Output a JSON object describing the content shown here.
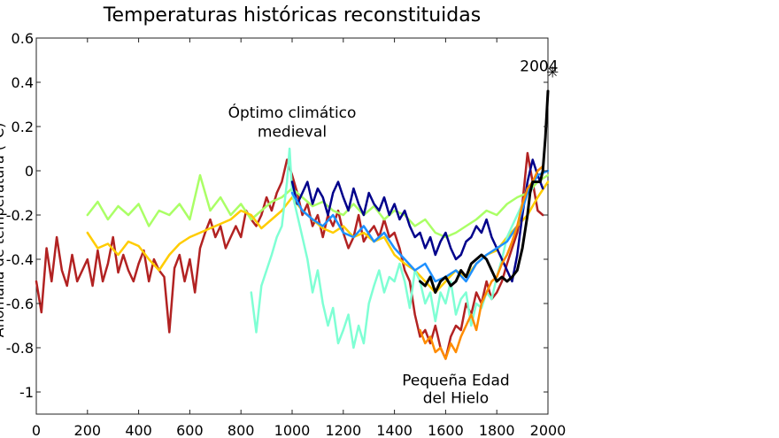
{
  "chart_data": {
    "type": "line",
    "title": "Temperaturas históricas reconstituidas",
    "xlabel": "",
    "ylabel": "Anomalía de temperatura (°C)",
    "xlim": [
      0,
      2000
    ],
    "ylim": [
      -1.1,
      0.6
    ],
    "xticks": [
      0,
      200,
      400,
      600,
      800,
      1000,
      1200,
      1400,
      1600,
      1800,
      2000
    ],
    "yticks": [
      0.6,
      0.4,
      0.2,
      0,
      -0.2,
      -0.4,
      -0.6,
      -0.8,
      -1
    ],
    "grid": false,
    "annotations": [
      {
        "text": "Óptimo climático",
        "x": 1000,
        "y": 0.24
      },
      {
        "text": "medieval",
        "x": 1000,
        "y": 0.155
      },
      {
        "text": "Pequeña Edad",
        "x": 1640,
        "y": -0.97
      },
      {
        "text": "del Hielo",
        "x": 1640,
        "y": -1.05
      },
      {
        "text": "2004",
        "x": 1965,
        "y": 0.45
      }
    ],
    "marker_2004": {
      "x": 2004,
      "y": 0.45,
      "symbol": "✳"
    },
    "series": [
      {
        "color": "#b22222",
        "x": [
          0,
          20,
          40,
          60,
          80,
          100,
          120,
          140,
          160,
          180,
          200,
          220,
          240,
          260,
          280,
          300,
          320,
          340,
          360,
          380,
          400,
          420,
          440,
          460,
          480,
          500,
          520,
          540,
          560,
          580,
          600,
          620,
          640,
          660,
          680,
          700,
          720,
          740,
          760,
          780,
          800,
          820,
          840,
          860,
          880,
          900,
          920,
          940,
          960,
          980,
          1000,
          1020,
          1040,
          1060,
          1080,
          1100,
          1120,
          1140,
          1160,
          1180,
          1200,
          1220,
          1240,
          1260,
          1280,
          1300,
          1320,
          1340,
          1360,
          1380,
          1400,
          1420,
          1440,
          1460,
          1480,
          1500,
          1520,
          1540,
          1560,
          1580,
          1600,
          1620,
          1640,
          1660,
          1680,
          1700,
          1720,
          1740,
          1760,
          1780,
          1800,
          1820,
          1840,
          1860,
          1880,
          1900,
          1920,
          1940,
          1960,
          1980
        ],
        "y": [
          -0.5,
          -0.64,
          -0.35,
          -0.5,
          -0.3,
          -0.45,
          -0.52,
          -0.38,
          -0.5,
          -0.45,
          -0.4,
          -0.52,
          -0.36,
          -0.5,
          -0.42,
          -0.3,
          -0.46,
          -0.38,
          -0.45,
          -0.5,
          -0.42,
          -0.36,
          -0.5,
          -0.4,
          -0.45,
          -0.48,
          -0.73,
          -0.44,
          -0.38,
          -0.5,
          -0.4,
          -0.55,
          -0.35,
          -0.28,
          -0.22,
          -0.3,
          -0.25,
          -0.35,
          -0.3,
          -0.25,
          -0.3,
          -0.18,
          -0.22,
          -0.25,
          -0.2,
          -0.12,
          -0.18,
          -0.1,
          -0.05,
          0.05,
          -0.02,
          -0.1,
          -0.2,
          -0.15,
          -0.25,
          -0.2,
          -0.3,
          -0.2,
          -0.25,
          -0.18,
          -0.28,
          -0.35,
          -0.3,
          -0.2,
          -0.32,
          -0.28,
          -0.25,
          -0.3,
          -0.22,
          -0.3,
          -0.28,
          -0.35,
          -0.45,
          -0.5,
          -0.65,
          -0.75,
          -0.72,
          -0.78,
          -0.7,
          -0.8,
          -0.85,
          -0.75,
          -0.7,
          -0.72,
          -0.6,
          -0.65,
          -0.55,
          -0.6,
          -0.5,
          -0.58,
          -0.55,
          -0.5,
          -0.42,
          -0.35,
          -0.28,
          -0.15,
          0.08,
          -0.05,
          -0.18,
          -0.2
        ]
      },
      {
        "color": "#aaff66",
        "x": [
          200,
          240,
          280,
          320,
          360,
          400,
          440,
          480,
          520,
          560,
          600,
          640,
          680,
          720,
          760,
          800,
          840,
          880,
          920,
          960,
          1000,
          1040,
          1080,
          1120,
          1160,
          1200,
          1240,
          1280,
          1320,
          1360,
          1400,
          1440,
          1480,
          1520,
          1560,
          1600,
          1640,
          1680,
          1720,
          1760,
          1800,
          1840,
          1880,
          1920,
          1960,
          2000
        ],
        "y": [
          -0.2,
          -0.14,
          -0.22,
          -0.16,
          -0.2,
          -0.15,
          -0.25,
          -0.18,
          -0.2,
          -0.15,
          -0.22,
          -0.02,
          -0.18,
          -0.12,
          -0.2,
          -0.15,
          -0.22,
          -0.18,
          -0.14,
          -0.12,
          -0.08,
          -0.12,
          -0.16,
          -0.14,
          -0.18,
          -0.2,
          -0.15,
          -0.2,
          -0.16,
          -0.22,
          -0.18,
          -0.2,
          -0.25,
          -0.22,
          -0.28,
          -0.3,
          -0.28,
          -0.25,
          -0.22,
          -0.18,
          -0.2,
          -0.15,
          -0.12,
          -0.1,
          -0.05,
          -0.02
        ]
      },
      {
        "color": "#ffcc00",
        "x": [
          200,
          240,
          280,
          320,
          360,
          400,
          440,
          480,
          520,
          560,
          600,
          640,
          680,
          720,
          760,
          800,
          840,
          880,
          920,
          960,
          1000,
          1040,
          1080,
          1120,
          1160,
          1200,
          1240,
          1280,
          1320,
          1360,
          1400,
          1440,
          1480,
          1520,
          1560,
          1600,
          1640,
          1680,
          1720,
          1760,
          1800,
          1840,
          1880,
          1920,
          1960,
          2000
        ],
        "y": [
          -0.28,
          -0.35,
          -0.33,
          -0.38,
          -0.32,
          -0.34,
          -0.4,
          -0.45,
          -0.38,
          -0.33,
          -0.3,
          -0.28,
          -0.26,
          -0.24,
          -0.22,
          -0.18,
          -0.2,
          -0.26,
          -0.22,
          -0.18,
          -0.12,
          -0.18,
          -0.22,
          -0.26,
          -0.28,
          -0.25,
          -0.3,
          -0.28,
          -0.32,
          -0.3,
          -0.38,
          -0.42,
          -0.45,
          -0.5,
          -0.55,
          -0.5,
          -0.45,
          -0.48,
          -0.42,
          -0.38,
          -0.36,
          -0.3,
          -0.25,
          -0.2,
          -0.12,
          -0.05
        ]
      },
      {
        "color": "#7fffd4",
        "x": [
          840,
          860,
          880,
          900,
          920,
          940,
          960,
          980,
          990,
          1000,
          1020,
          1040,
          1060,
          1080,
          1100,
          1120,
          1140,
          1160,
          1180,
          1200,
          1220,
          1240,
          1260,
          1280,
          1300,
          1320,
          1340,
          1360,
          1380,
          1400,
          1420,
          1440,
          1460,
          1480,
          1500,
          1520,
          1540,
          1560,
          1580,
          1600,
          1620,
          1640,
          1660,
          1680,
          1700,
          1720,
          1740,
          1760,
          1780,
          1800,
          1820,
          1840,
          1860,
          1880,
          1900,
          1920,
          1940
        ],
        "y": [
          -0.55,
          -0.73,
          -0.52,
          -0.45,
          -0.38,
          -0.3,
          -0.25,
          -0.05,
          0.1,
          -0.1,
          -0.2,
          -0.3,
          -0.4,
          -0.55,
          -0.45,
          -0.6,
          -0.7,
          -0.62,
          -0.78,
          -0.72,
          -0.65,
          -0.8,
          -0.7,
          -0.78,
          -0.6,
          -0.52,
          -0.45,
          -0.55,
          -0.48,
          -0.5,
          -0.42,
          -0.5,
          -0.62,
          -0.45,
          -0.5,
          -0.6,
          -0.55,
          -0.68,
          -0.55,
          -0.6,
          -0.5,
          -0.65,
          -0.58,
          -0.55,
          -0.7,
          -0.6,
          -0.62,
          -0.55,
          -0.58,
          -0.48,
          -0.4,
          -0.3,
          -0.25,
          -0.2,
          -0.15,
          -0.1,
          -0.08
        ]
      },
      {
        "color": "#00008b",
        "x": [
          1000,
          1020,
          1040,
          1060,
          1080,
          1100,
          1120,
          1140,
          1160,
          1180,
          1200,
          1220,
          1240,
          1260,
          1280,
          1300,
          1320,
          1340,
          1360,
          1380,
          1400,
          1420,
          1440,
          1460,
          1480,
          1500,
          1520,
          1540,
          1560,
          1580,
          1600,
          1620,
          1640,
          1660,
          1680,
          1700,
          1720,
          1740,
          1760,
          1780,
          1800,
          1820,
          1840,
          1860,
          1880,
          1900,
          1920,
          1940,
          1960,
          1980
        ],
        "y": [
          -0.05,
          -0.15,
          -0.1,
          -0.05,
          -0.15,
          -0.08,
          -0.12,
          -0.2,
          -0.1,
          -0.05,
          -0.12,
          -0.18,
          -0.08,
          -0.15,
          -0.2,
          -0.1,
          -0.15,
          -0.18,
          -0.12,
          -0.2,
          -0.15,
          -0.22,
          -0.18,
          -0.25,
          -0.3,
          -0.28,
          -0.35,
          -0.3,
          -0.38,
          -0.32,
          -0.28,
          -0.35,
          -0.4,
          -0.38,
          -0.32,
          -0.3,
          -0.25,
          -0.28,
          -0.22,
          -0.3,
          -0.35,
          -0.4,
          -0.45,
          -0.5,
          -0.38,
          -0.2,
          -0.05,
          0.05,
          -0.02,
          -0.08
        ]
      },
      {
        "color": "#1e90ff",
        "x": [
          1000,
          1040,
          1080,
          1120,
          1160,
          1200,
          1240,
          1280,
          1320,
          1360,
          1400,
          1440,
          1480,
          1520,
          1560,
          1600,
          1640,
          1680,
          1720,
          1760,
          1800,
          1840,
          1880,
          1920,
          1960,
          2000
        ],
        "y": [
          -0.1,
          -0.18,
          -0.22,
          -0.25,
          -0.2,
          -0.28,
          -0.3,
          -0.25,
          -0.32,
          -0.28,
          -0.35,
          -0.4,
          -0.45,
          -0.42,
          -0.5,
          -0.48,
          -0.45,
          -0.5,
          -0.42,
          -0.38,
          -0.35,
          -0.32,
          -0.25,
          -0.1,
          -0.02,
          0.0
        ]
      },
      {
        "color": "#ff8c00",
        "x": [
          1500,
          1520,
          1540,
          1560,
          1580,
          1600,
          1620,
          1640,
          1660,
          1680,
          1700,
          1720,
          1740,
          1760,
          1780,
          1800,
          1820,
          1840,
          1860,
          1880,
          1900,
          1920,
          1940,
          1960,
          1980
        ],
        "y": [
          -0.72,
          -0.78,
          -0.75,
          -0.82,
          -0.8,
          -0.85,
          -0.78,
          -0.82,
          -0.75,
          -0.7,
          -0.65,
          -0.72,
          -0.6,
          -0.55,
          -0.5,
          -0.48,
          -0.42,
          -0.38,
          -0.32,
          -0.25,
          -0.15,
          -0.08,
          -0.05,
          0.0,
          0.02
        ]
      },
      {
        "color": "#000000",
        "x": [
          1500,
          1520,
          1540,
          1560,
          1580,
          1600,
          1620,
          1640,
          1660,
          1680,
          1700,
          1720,
          1740,
          1760,
          1780,
          1800,
          1820,
          1840,
          1860,
          1880,
          1900,
          1920,
          1930,
          1940,
          1960,
          1970,
          1980,
          1990,
          2000
        ],
        "y": [
          -0.5,
          -0.52,
          -0.48,
          -0.55,
          -0.5,
          -0.48,
          -0.52,
          -0.5,
          -0.45,
          -0.48,
          -0.42,
          -0.4,
          -0.38,
          -0.4,
          -0.45,
          -0.5,
          -0.48,
          -0.5,
          -0.48,
          -0.45,
          -0.35,
          -0.2,
          -0.1,
          -0.05,
          -0.05,
          -0.05,
          0.0,
          0.15,
          0.36
        ]
      }
    ]
  }
}
